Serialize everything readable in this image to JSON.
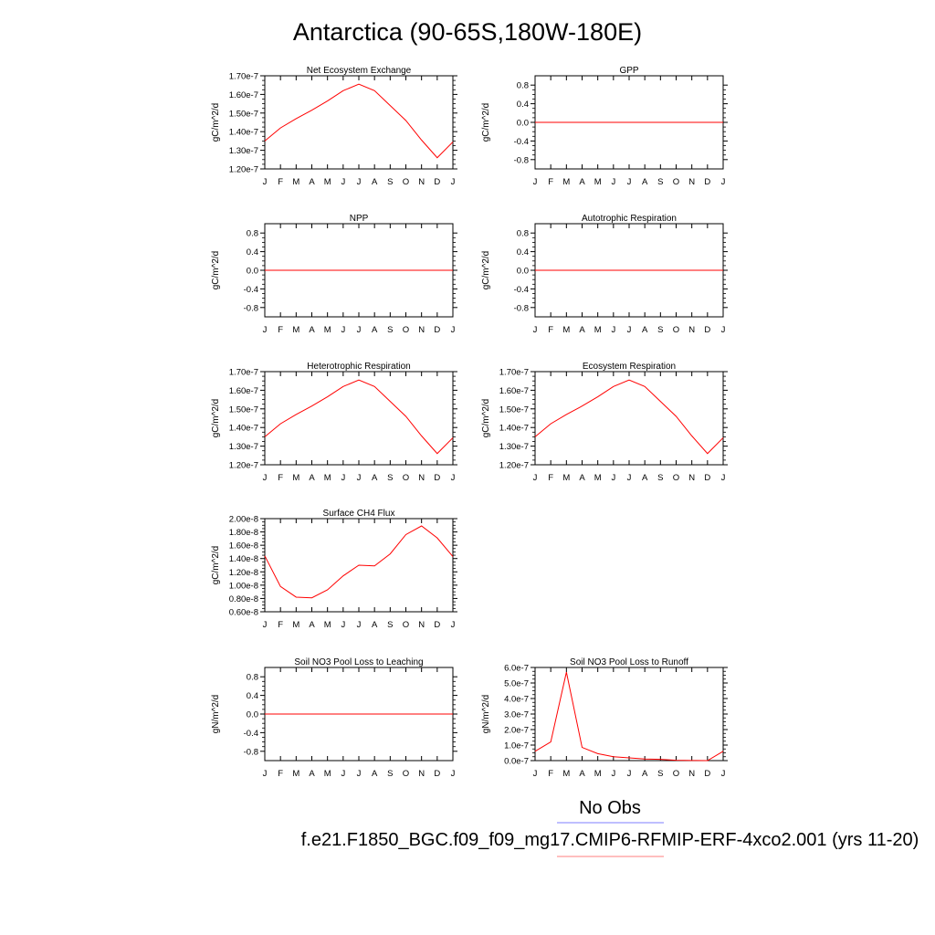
{
  "figure": {
    "title": "Antarctica (90-65S,180W-180E)"
  },
  "legend": {
    "entries": [
      {
        "label": "No Obs",
        "color": "#7f7fff"
      },
      {
        "label": "f.e21.F1850_BGC.f09_f09_mg17.CMIP6-RFMIP-ERF-4xco2.001 (yrs 11-20)",
        "color": "#ff7f7f"
      }
    ]
  },
  "colors": {
    "series": "#ff0000",
    "axis": "#000000"
  },
  "chart_data": [
    {
      "type": "line",
      "title": "Net Ecosystem Exchange",
      "ylabel": "gC/m^2/d",
      "x": [
        "J",
        "F",
        "M",
        "A",
        "M",
        "J",
        "J",
        "A",
        "S",
        "O",
        "N",
        "D",
        "J"
      ],
      "ylim": [
        1.2e-07,
        1.7e-07
      ],
      "yticks": [
        1.2e-07,
        1.3e-07,
        1.4e-07,
        1.5e-07,
        1.6e-07,
        1.7e-07
      ],
      "yticklabels": [
        "1.20e-7",
        "1.30e-7",
        "1.40e-7",
        "1.50e-7",
        "1.60e-7",
        "1.70e-7"
      ],
      "series": [
        {
          "values": [
            1.35e-07,
            1.42e-07,
            1.47e-07,
            1.515e-07,
            1.565e-07,
            1.62e-07,
            1.655e-07,
            1.62e-07,
            1.54e-07,
            1.46e-07,
            1.355e-07,
            1.26e-07,
            1.345e-07
          ]
        }
      ]
    },
    {
      "type": "line",
      "title": "GPP",
      "ylabel": "gC/m^2/d",
      "x": [
        "J",
        "F",
        "M",
        "A",
        "M",
        "J",
        "J",
        "A",
        "S",
        "O",
        "N",
        "D",
        "J"
      ],
      "ylim": [
        -1.0,
        1.0
      ],
      "yticks": [
        -0.8,
        -0.4,
        0.0,
        0.4,
        0.8
      ],
      "yticklabels": [
        "-0.8",
        "-0.4",
        "0.0",
        "0.4",
        "0.8"
      ],
      "series": [
        {
          "values": [
            0,
            0,
            0,
            0,
            0,
            0,
            0,
            0,
            0,
            0,
            0,
            0,
            0
          ]
        }
      ]
    },
    {
      "type": "line",
      "title": "NPP",
      "ylabel": "gC/m^2/d",
      "x": [
        "J",
        "F",
        "M",
        "A",
        "M",
        "J",
        "J",
        "A",
        "S",
        "O",
        "N",
        "D",
        "J"
      ],
      "ylim": [
        -1.0,
        1.0
      ],
      "yticks": [
        -0.8,
        -0.4,
        0.0,
        0.4,
        0.8
      ],
      "yticklabels": [
        "-0.8",
        "-0.4",
        "0.0",
        "0.4",
        "0.8"
      ],
      "series": [
        {
          "values": [
            0,
            0,
            0,
            0,
            0,
            0,
            0,
            0,
            0,
            0,
            0,
            0,
            0
          ]
        }
      ]
    },
    {
      "type": "line",
      "title": "Autotrophic Respiration",
      "ylabel": "gC/m^2/d",
      "x": [
        "J",
        "F",
        "M",
        "A",
        "M",
        "J",
        "J",
        "A",
        "S",
        "O",
        "N",
        "D",
        "J"
      ],
      "ylim": [
        -1.0,
        1.0
      ],
      "yticks": [
        -0.8,
        -0.4,
        0.0,
        0.4,
        0.8
      ],
      "yticklabels": [
        "-0.8",
        "-0.4",
        "0.0",
        "0.4",
        "0.8"
      ],
      "series": [
        {
          "values": [
            0,
            0,
            0,
            0,
            0,
            0,
            0,
            0,
            0,
            0,
            0,
            0,
            0
          ]
        }
      ]
    },
    {
      "type": "line",
      "title": "Heterotrophic Respiration",
      "ylabel": "gC/m^2/d",
      "x": [
        "J",
        "F",
        "M",
        "A",
        "M",
        "J",
        "J",
        "A",
        "S",
        "O",
        "N",
        "D",
        "J"
      ],
      "ylim": [
        1.2e-07,
        1.7e-07
      ],
      "yticks": [
        1.2e-07,
        1.3e-07,
        1.4e-07,
        1.5e-07,
        1.6e-07,
        1.7e-07
      ],
      "yticklabels": [
        "1.20e-7",
        "1.30e-7",
        "1.40e-7",
        "1.50e-7",
        "1.60e-7",
        "1.70e-7"
      ],
      "series": [
        {
          "values": [
            1.35e-07,
            1.42e-07,
            1.47e-07,
            1.515e-07,
            1.565e-07,
            1.62e-07,
            1.655e-07,
            1.62e-07,
            1.54e-07,
            1.46e-07,
            1.355e-07,
            1.26e-07,
            1.345e-07
          ]
        }
      ]
    },
    {
      "type": "line",
      "title": "Ecosystem Respiration",
      "ylabel": "gC/m^2/d",
      "x": [
        "J",
        "F",
        "M",
        "A",
        "M",
        "J",
        "J",
        "A",
        "S",
        "O",
        "N",
        "D",
        "J"
      ],
      "ylim": [
        1.2e-07,
        1.7e-07
      ],
      "yticks": [
        1.2e-07,
        1.3e-07,
        1.4e-07,
        1.5e-07,
        1.6e-07,
        1.7e-07
      ],
      "yticklabels": [
        "1.20e-7",
        "1.30e-7",
        "1.40e-7",
        "1.50e-7",
        "1.60e-7",
        "1.70e-7"
      ],
      "series": [
        {
          "values": [
            1.35e-07,
            1.42e-07,
            1.47e-07,
            1.515e-07,
            1.565e-07,
            1.62e-07,
            1.655e-07,
            1.62e-07,
            1.54e-07,
            1.46e-07,
            1.355e-07,
            1.26e-07,
            1.345e-07
          ]
        }
      ]
    },
    {
      "type": "line",
      "title": "Surface CH4 Flux",
      "ylabel": "gC/m^2/d",
      "x": [
        "J",
        "F",
        "M",
        "A",
        "M",
        "J",
        "J",
        "A",
        "S",
        "O",
        "N",
        "D",
        "J"
      ],
      "ylim": [
        6e-09,
        2e-08
      ],
      "yticks": [
        6e-09,
        8e-09,
        1e-08,
        1.2e-08,
        1.4e-08,
        1.6e-08,
        1.8e-08,
        2e-08
      ],
      "yticklabels": [
        "0.60e-8",
        "0.80e-8",
        "1.00e-8",
        "1.20e-8",
        "1.40e-8",
        "1.60e-8",
        "1.80e-8",
        "2.00e-8"
      ],
      "series": [
        {
          "values": [
            1.44e-08,
            9.8e-09,
            8.2e-09,
            8.1e-09,
            9.3e-09,
            1.14e-08,
            1.3e-08,
            1.29e-08,
            1.47e-08,
            1.76e-08,
            1.89e-08,
            1.71e-08,
            1.43e-08
          ]
        }
      ]
    },
    {
      "type": "line",
      "title": "Soil NO3 Pool Loss to Leaching",
      "ylabel": "gN/m^2/d",
      "x": [
        "J",
        "F",
        "M",
        "A",
        "M",
        "J",
        "J",
        "A",
        "S",
        "O",
        "N",
        "D",
        "J"
      ],
      "ylim": [
        -1.0,
        1.0
      ],
      "yticks": [
        -0.8,
        -0.4,
        0.0,
        0.4,
        0.8
      ],
      "yticklabels": [
        "-0.8",
        "-0.4",
        "0.0",
        "0.4",
        "0.8"
      ],
      "series": [
        {
          "values": [
            0,
            0,
            0,
            0,
            0,
            0,
            0,
            0,
            0,
            0,
            0,
            0,
            0
          ]
        }
      ]
    },
    {
      "type": "line",
      "title": "Soil NO3 Pool Loss to Runoff",
      "ylabel": "gN/m^2/d",
      "x": [
        "J",
        "F",
        "M",
        "A",
        "M",
        "J",
        "J",
        "A",
        "S",
        "O",
        "N",
        "D",
        "J"
      ],
      "ylim": [
        0,
        6e-07
      ],
      "yticks": [
        0,
        1e-07,
        2e-07,
        3e-07,
        4e-07,
        5e-07,
        6e-07
      ],
      "yticklabels": [
        "0.0e-7",
        "1.0e-7",
        "2.0e-7",
        "3.0e-7",
        "4.0e-7",
        "5.0e-7",
        "6.0e-7"
      ],
      "series": [
        {
          "values": [
            6e-08,
            1.2e-07,
            5.7e-07,
            8.5e-08,
            4.5e-08,
            2.5e-08,
            1.8e-08,
            1e-08,
            8e-09,
            2e-09,
            1e-09,
            0.0,
            6e-08
          ]
        }
      ]
    }
  ]
}
